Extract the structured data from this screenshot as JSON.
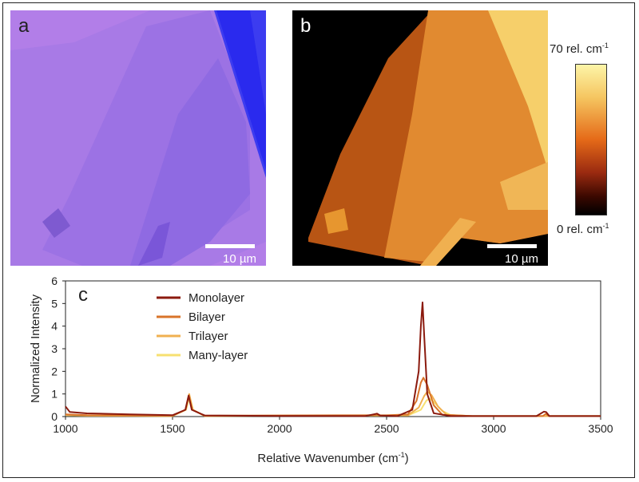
{
  "panel_a": {
    "letter": "a",
    "scale_bar": "10 µm"
  },
  "panel_b": {
    "letter": "b",
    "scale_bar": "10 µm"
  },
  "colorbar": {
    "max_label": "70 rel. cm",
    "min_label": "0 rel. cm",
    "superscript": "-1"
  },
  "chart_data": {
    "type": "line",
    "panel_letter": "c",
    "xlabel": "Relative Wavenumber (cm",
    "xlabel_sup": "-1",
    "xlabel_tail": ")",
    "ylabel": "Normalized Intensity",
    "xlim": [
      1000,
      3500
    ],
    "ylim": [
      0,
      6
    ],
    "xticks": [
      1000,
      1500,
      2000,
      2500,
      3000,
      3500
    ],
    "yticks": [
      0,
      1,
      2,
      3,
      4,
      5,
      6
    ],
    "legend_position": "top-left",
    "series": [
      {
        "name": "Monolayer",
        "color": "#8b1a0e",
        "x": [
          1000,
          1020,
          1100,
          1300,
          1500,
          1560,
          1575,
          1590,
          1650,
          2000,
          2400,
          2440,
          2455,
          2470,
          2550,
          2620,
          2650,
          2660,
          2668,
          2676,
          2690,
          2720,
          2800,
          3200,
          3235,
          3245,
          3260,
          3500
        ],
        "y": [
          0.45,
          0.2,
          0.14,
          0.1,
          0.06,
          0.3,
          0.92,
          0.3,
          0.05,
          0.03,
          0.02,
          0.1,
          0.13,
          0.05,
          0.02,
          0.3,
          2.0,
          4.0,
          5.05,
          3.5,
          1.0,
          0.15,
          0.02,
          0.02,
          0.22,
          0.2,
          0.02,
          0.02
        ]
      },
      {
        "name": "Bilayer",
        "color": "#d9742a",
        "x": [
          1000,
          1100,
          1500,
          1560,
          1576,
          1592,
          1650,
          2440,
          2455,
          2470,
          2600,
          2640,
          2660,
          2672,
          2690,
          2720,
          2760,
          2900,
          3230,
          3243,
          3260,
          3500
        ],
        "y": [
          0.1,
          0.06,
          0.04,
          0.3,
          0.95,
          0.3,
          0.04,
          0.06,
          0.08,
          0.04,
          0.1,
          0.7,
          1.5,
          1.72,
          1.4,
          0.5,
          0.08,
          0.02,
          0.02,
          0.12,
          0.02,
          0.02
        ]
      },
      {
        "name": "Trilayer",
        "color": "#f0b050",
        "x": [
          1000,
          1100,
          1500,
          1562,
          1578,
          1594,
          1650,
          2600,
          2650,
          2675,
          2690,
          2710,
          2740,
          2780,
          2900,
          3500
        ],
        "y": [
          0.08,
          0.05,
          0.03,
          0.3,
          1.0,
          0.3,
          0.03,
          0.06,
          0.4,
          0.9,
          1.1,
          0.95,
          0.45,
          0.08,
          0.02,
          0.02
        ]
      },
      {
        "name": "Many-layer",
        "color": "#f7e070",
        "x": [
          1000,
          1100,
          1500,
          1563,
          1580,
          1596,
          1650,
          2600,
          2660,
          2685,
          2700,
          2720,
          2760,
          2800,
          2900,
          3500
        ],
        "y": [
          0.06,
          0.04,
          0.03,
          0.3,
          0.9,
          0.3,
          0.03,
          0.05,
          0.3,
          0.7,
          0.8,
          0.65,
          0.25,
          0.06,
          0.02,
          0.02
        ]
      }
    ]
  }
}
